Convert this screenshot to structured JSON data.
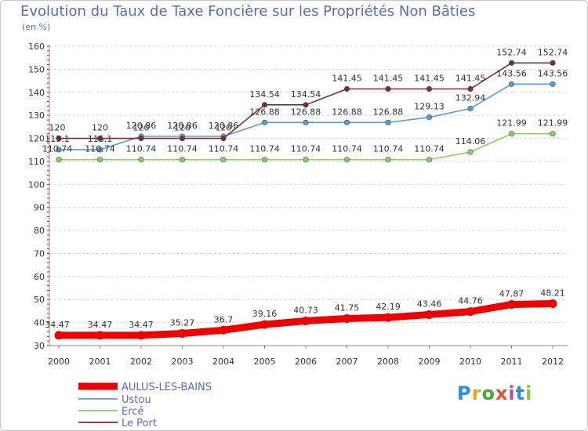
{
  "chart_data": {
    "type": "line",
    "title": "Evolution du Taux de Taxe Foncière sur les Propriétés Non Bâties",
    "ylabel": "(en %)",
    "xlabel": "",
    "ylim": [
      30,
      160
    ],
    "yticks": [
      30,
      40,
      50,
      60,
      70,
      80,
      90,
      100,
      110,
      120,
      130,
      140,
      150,
      160
    ],
    "grid": "horizontal-dashed",
    "legend_position": "bottom-left",
    "x": [
      "2000",
      "2001",
      "2002",
      "2003",
      "2004",
      "2005",
      "2006",
      "2007",
      "2008",
      "2009",
      "2010",
      "2011",
      "2012"
    ],
    "series": [
      {
        "name": "AULUS-LES-BAINS",
        "color": "#ee0000",
        "values": [
          34.47,
          34.47,
          34.47,
          35.27,
          36.7,
          39.16,
          40.73,
          41.75,
          42.19,
          43.46,
          44.76,
          47.87,
          48.21
        ],
        "labels": [
          "34.47",
          "34.47",
          "34.47",
          "35.27",
          "36.7",
          "39.16",
          "40.73",
          "41.75",
          "42.19",
          "43.46",
          "44.76",
          "47.87",
          "48.21"
        ]
      },
      {
        "name": "Ustou",
        "color": "#5b9bd5",
        "values": [
          115.1,
          115.1,
          120.86,
          120.86,
          120.86,
          126.88,
          126.88,
          126.88,
          126.88,
          129.13,
          132.94,
          143.56,
          143.56
        ],
        "labels": [
          "115.1",
          "115.1",
          "120.86",
          "120.86",
          "120.86",
          "126.88",
          "126.88",
          "126.88",
          "126.88",
          "129.13",
          "132.94",
          "143.56",
          "143.56"
        ]
      },
      {
        "name": "Ercé",
        "color": "#88d060",
        "values": [
          110.74,
          110.74,
          110.74,
          110.74,
          110.74,
          110.74,
          110.74,
          110.74,
          110.74,
          110.74,
          114.06,
          121.99,
          121.99
        ],
        "labels": [
          "110.74",
          "110.74",
          "110.74",
          "110.74",
          "110.74",
          "110.74",
          "110.74",
          "110.74",
          "110.74",
          "110.74",
          "114.06",
          "121.99",
          "121.99"
        ]
      },
      {
        "name": "Le Port",
        "color": "#7b2c3a",
        "values": [
          120,
          120,
          120,
          120,
          120,
          134.54,
          134.54,
          141.45,
          141.45,
          141.45,
          141.45,
          152.74,
          152.74
        ],
        "labels": [
          "120",
          "120",
          "120",
          "120",
          "120",
          "134.54",
          "134.54",
          "141.45",
          "141.45",
          "141.45",
          "141.45",
          "152.74",
          "152.74"
        ]
      }
    ]
  },
  "logo": {
    "p": "P",
    "r": "r",
    "o": "o",
    "x": "x",
    "i": "i",
    "t": "t",
    "i2": "i"
  }
}
